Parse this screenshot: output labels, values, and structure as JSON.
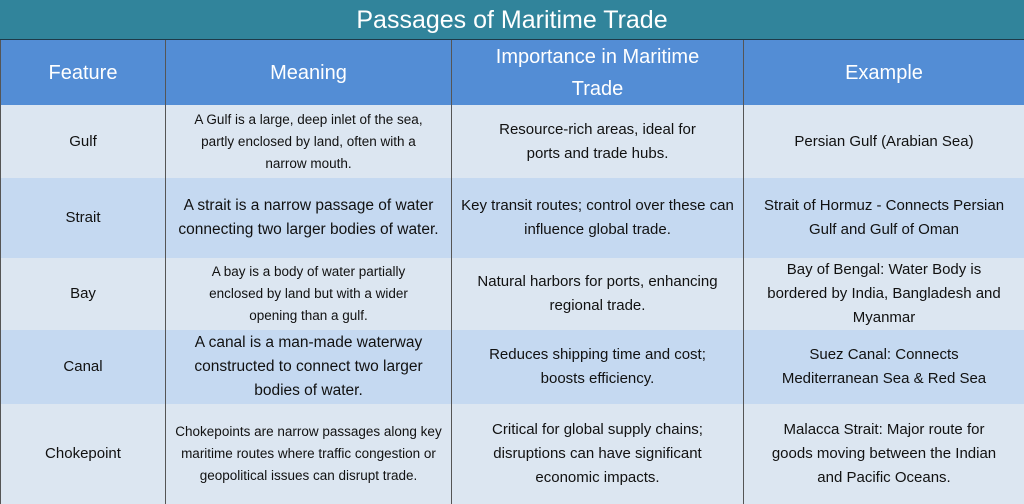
{
  "title": "Passages of Maritime Trade",
  "headers": [
    "Feature",
    "Meaning",
    "Importance in Maritime Trade",
    "Example"
  ],
  "colors": {
    "title_bg": "#31849B",
    "header_bg": "#538DD5",
    "row_light": "#DCE6F1",
    "row_dark": "#C5D9F1"
  },
  "rows": [
    {
      "feature": "Gulf",
      "meaning": "A Gulf is a large, deep inlet of the sea, partly enclosed by land, often with a narrow mouth.",
      "importance": "Resource-rich areas, ideal for ports and trade hubs.",
      "example": "Persian Gulf (Arabian Sea)"
    },
    {
      "feature": "Strait",
      "meaning": "A strait is a narrow passage of water connecting two larger bodies of water.",
      "importance": "Key transit routes; control over these can influence global trade.",
      "example": "Strait of Hormuz - Connects Persian Gulf and Gulf of Oman"
    },
    {
      "feature": "Bay",
      "meaning": "A bay is a body of water partially enclosed by land but with a wider opening than a gulf.",
      "importance": "Natural harbors for ports, enhancing regional trade.",
      "example": "Bay of Bengal: Water Body is bordered by India, Bangladesh and Myanmar"
    },
    {
      "feature": "Canal",
      "meaning": "A canal is a man-made waterway constructed to connect two larger bodies of water.",
      "importance": "Reduces shipping time and cost; boosts efficiency.",
      "example": "Suez Canal: Connects Mediterranean Sea & Red Sea"
    },
    {
      "feature": "Chokepoint",
      "meaning": "Chokepoints are narrow passages along key maritime routes where traffic congestion or geopolitical issues can disrupt trade.",
      "importance": "Critical for global supply chains; disruptions can have significant economic impacts.",
      "example": "Malacca Strait: Major route for goods moving between the Indian and Pacific Oceans."
    }
  ]
}
